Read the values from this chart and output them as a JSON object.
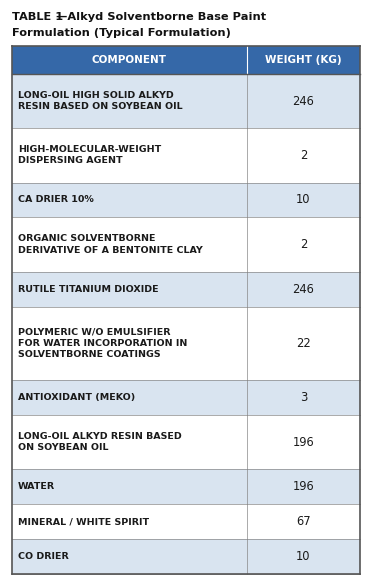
{
  "title_line1_bold": "TABLE 1",
  "title_line1_rest": "—Alkyd Solventborne Base Paint",
  "title_line2": "Formulation (Typical Formulation)",
  "header": [
    "COMPONENT",
    "WEIGHT (KG)"
  ],
  "header_bg": "#3568a8",
  "header_text_color": "#ffffff",
  "rows": [
    [
      "LONG-OIL HIGH SOLID ALKYD\nRESIN BASED ON SOYBEAN OIL",
      "246"
    ],
    [
      "HIGH-MOLECULAR-WEIGHT\nDISPERSING AGENT",
      "2"
    ],
    [
      "CA DRIER 10%",
      "10"
    ],
    [
      "ORGANIC SOLVENTBORNE\nDERIVATIVE OF A BENTONITE CLAY",
      "2"
    ],
    [
      "RUTILE TITANIUM DIOXIDE",
      "246"
    ],
    [
      "POLYMERIC W/O EMULSIFIER\nFOR WATER INCORPORATION IN\nSOLVENTBORNE COATINGS",
      "22"
    ],
    [
      "ANTIOXIDANT (MEKO)",
      "3"
    ],
    [
      "LONG-OIL ALKYD RESIN BASED\nON SOYBEAN OIL",
      "196"
    ],
    [
      "WATER",
      "196"
    ],
    [
      "MINERAL / WHITE SPIRIT",
      "67"
    ],
    [
      "CO DRIER",
      "10"
    ]
  ],
  "row_bg_even": "#d9e4f0",
  "row_bg_odd": "#ffffff",
  "border_color": "#888888",
  "outer_border_color": "#555555",
  "text_color": "#1a1a1a",
  "font_size_header": 7.5,
  "font_size_body": 6.8,
  "font_size_title": 8.2,
  "col_split": 0.675,
  "fig_width": 3.72,
  "fig_height": 5.82,
  "dpi": 100
}
